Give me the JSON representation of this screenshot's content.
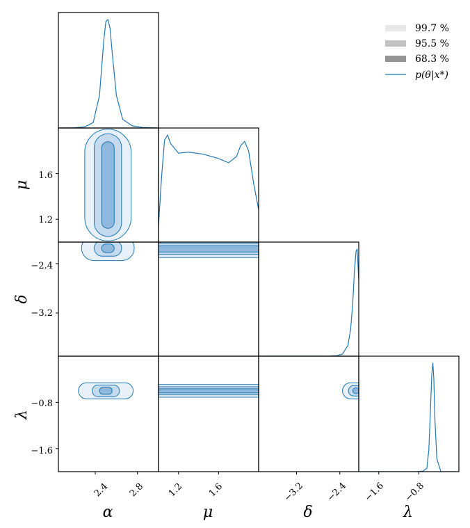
{
  "chart_data": {
    "type": "corner",
    "parameters": [
      {
        "symbol": "α",
        "xticks": [
          2.4,
          2.8
        ],
        "tick_labels": [
          "2.4",
          "2.8"
        ]
      },
      {
        "symbol": "μ",
        "xticks": [
          1.2,
          1.6
        ],
        "yticks": [
          1.6,
          1.2
        ],
        "tick_labels": [
          "1.2",
          "1.6"
        ],
        "ytick_labels": [
          "1.6",
          "1.2"
        ]
      },
      {
        "symbol": "δ",
        "xticks": [
          -3.2,
          -2.4
        ],
        "yticks": [
          -2.4,
          -3.2
        ],
        "tick_labels": [
          "−3.2",
          "−2.4"
        ],
        "ytick_labels": [
          "−2.4",
          "−3.2"
        ]
      },
      {
        "symbol": "λ",
        "xticks": [
          -1.6,
          -0.8
        ],
        "yticks": [
          -0.8,
          -1.6
        ],
        "tick_labels": [
          "−1.6",
          "−0.8"
        ],
        "ytick_labels": [
          "−0.8",
          "−1.6"
        ]
      }
    ],
    "ranges": {
      "alpha": [
        2.05,
        3.0
      ],
      "mu": [
        1.0,
        2.0
      ],
      "delta": [
        -3.9,
        -2.05
      ],
      "lambda": [
        -2.0,
        -0.0
      ]
    },
    "credible_levels": [
      "99.7 %",
      "95.5 %",
      "68.3 %"
    ],
    "posterior_label": "p(θ|x*)",
    "marginals": {
      "alpha": {
        "x": [
          2.05,
          2.2,
          2.3,
          2.38,
          2.44,
          2.48,
          2.5,
          2.52,
          2.54,
          2.56,
          2.6,
          2.66,
          2.75,
          2.85,
          3.0
        ],
        "density": [
          0.0,
          0.002,
          0.01,
          0.05,
          0.3,
          0.8,
          0.98,
          1.0,
          0.92,
          0.7,
          0.3,
          0.08,
          0.02,
          0.005,
          0.0
        ]
      },
      "mu": {
        "x": [
          1.0,
          1.03,
          1.06,
          1.09,
          1.12,
          1.2,
          1.3,
          1.45,
          1.6,
          1.7,
          1.78,
          1.82,
          1.86,
          1.9,
          1.95,
          2.0
        ],
        "density": [
          0.15,
          0.6,
          0.95,
          1.0,
          0.92,
          0.83,
          0.84,
          0.82,
          0.78,
          0.74,
          0.8,
          0.9,
          0.94,
          0.85,
          0.55,
          0.3
        ]
      },
      "delta": {
        "x": [
          -3.9,
          -2.6,
          -2.45,
          -2.35,
          -2.25,
          -2.2,
          -2.16,
          -2.13,
          -2.1,
          -2.08,
          -2.05
        ],
        "density": [
          0.0,
          0.0,
          0.005,
          0.02,
          0.1,
          0.25,
          0.5,
          0.8,
          0.98,
          1.0,
          0.7
        ]
      },
      "lambda": {
        "x": [
          -2.0,
          -0.85,
          -0.72,
          -0.64,
          -0.6,
          -0.57,
          -0.54,
          -0.52,
          -0.5,
          -0.48,
          -0.44,
          -0.36,
          -0.0
        ],
        "density": [
          0.0,
          0.0,
          0.005,
          0.03,
          0.2,
          0.55,
          0.9,
          1.0,
          0.85,
          0.5,
          0.12,
          0.0,
          0.0
        ]
      }
    },
    "color": "#1f77b4",
    "fill_colors": [
      "#e8f1f9",
      "#c4daee",
      "#8fb8dc"
    ]
  }
}
